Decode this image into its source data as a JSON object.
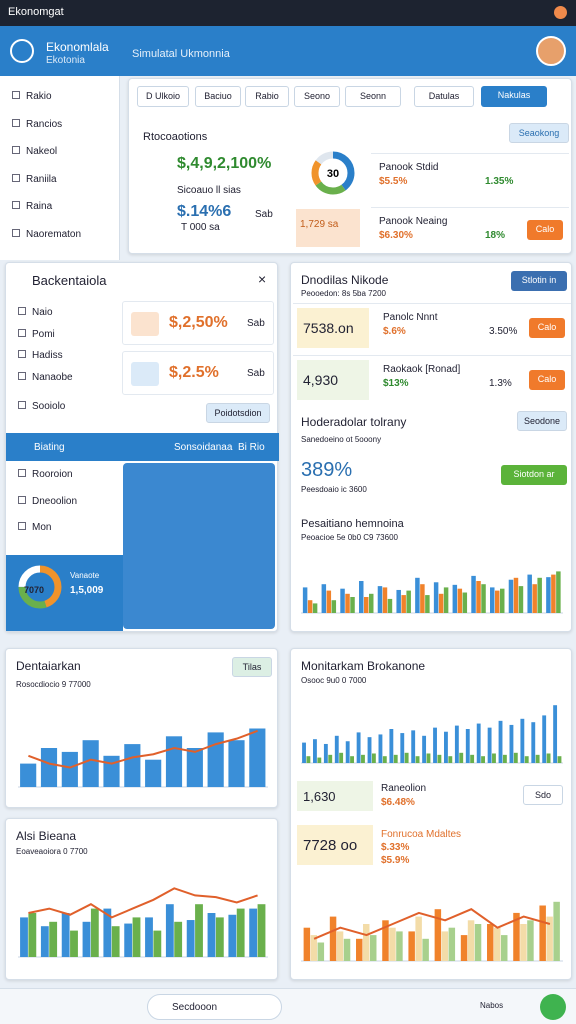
{
  "status_bar": {
    "title": "Ekonomgat"
  },
  "header": {
    "app_name": "Ekonomlala",
    "app_sub": "Ekotonia",
    "menu": "Simulatal Ukmonnia"
  },
  "sidebar": {
    "items": [
      "Rakio",
      "Rancios",
      "Nakeol",
      "Raniila",
      "Raina",
      "Naorematon"
    ]
  },
  "tabs": [
    "D Ulkoio",
    "Baciuo",
    "Rabio",
    "Seono",
    "Seonn",
    "Datulas",
    "Nakulas"
  ],
  "overview": {
    "title": "Rtocoaotions",
    "button": "Seaokong",
    "big_value": "$,4,9,2,100%",
    "big_caption": "Sicoauo ll sias",
    "value2": "$.14%6",
    "value2_caption": "T 000 sa",
    "value2_side": "Sab",
    "tag": "1,729 sa",
    "donut_label": "30",
    "donut_values": [
      40,
      25,
      20,
      15
    ],
    "donut_colors": [
      "#2a7fc9",
      "#6ab04c",
      "#f0932b",
      "#dfe6ee"
    ],
    "rows": [
      {
        "title": "Panook Stdid",
        "value": "$5.5%",
        "pct": "1.35%"
      },
      {
        "title": "Panook Neaing",
        "value": "$6.30%",
        "pct": "18%",
        "button": "Calo"
      }
    ]
  },
  "left_panel": {
    "title": "Backentaiola",
    "items": [
      "Naio",
      "Pomi",
      "Hadiss",
      "Nanaobe",
      "Sooiolo"
    ],
    "cards": [
      {
        "value": "$,2,50%",
        "side": "Sab"
      },
      {
        "value": "$,2.5%",
        "side": "Sab"
      }
    ],
    "button": "Poidotsdion",
    "active": {
      "label": "Biating",
      "middle": "Sonsoidanaa",
      "right": "Bi Rio"
    },
    "items2": [
      "Rooroion",
      "Dneoolion",
      "Mon"
    ],
    "donut_label": "7070",
    "donut_values": [
      45,
      30,
      25
    ],
    "donut_colors": [
      "#f0932b",
      "#6ab04c",
      "#ffffff"
    ],
    "donut_caption": "Vanaote",
    "donut_value": "1,5,009"
  },
  "right_panel": {
    "title": "Dnodilas Nikode",
    "subtitle": "Peooedon: 8s 5ba 7200",
    "button": "Stlotin in",
    "rows": [
      {
        "value": "7538.on",
        "title": "Panolc Nnnt",
        "sub": "$.6%",
        "pct": "3.50%",
        "button": "Calo"
      },
      {
        "value": "4,930",
        "title": "Raokaok [Ronad]",
        "sub": "$13%",
        "pct": "1.3%",
        "button": "Calo"
      }
    ],
    "section_title": "Hoderadolar tolrany",
    "section_sub": "Sanedoeino ot 5ooony",
    "section_button": "Seodone",
    "metric": "389%",
    "metric_caption": "Peesdoaio ic 3600",
    "metric_button": "Siotdon ar"
  },
  "bottom_right": {
    "title": "Monitarkam Brokanone",
    "subtitle": "Osooc 9u0 0 7000",
    "card1": {
      "value": "1,630",
      "title": "Raneolion",
      "sub": "$6.48%",
      "button": "Sdo"
    },
    "card2": {
      "value": "7728 oo",
      "title": "Fonrucoa Mdaltes",
      "sub": "$.33%",
      "sub2": "$5.9%"
    }
  },
  "bottom_nav": {
    "search": "Secdooon",
    "right": "Nabos"
  },
  "charts": [
    {
      "type": "bar",
      "title": "Pesaitiano hemnoina",
      "subtitle": "Peoacioe 5e 0b0 C9 73600",
      "ylim": [
        0,
        100
      ],
      "series": [
        {
          "kind": "bar",
          "color": "#3a8fd8",
          "values": [
            40,
            45,
            38,
            50,
            42,
            36,
            55,
            48,
            44,
            58,
            40,
            52,
            60,
            56
          ]
        },
        {
          "kind": "bar",
          "color": "#f0822b",
          "values": [
            20,
            35,
            30,
            25,
            40,
            28,
            45,
            30,
            38,
            50,
            35,
            55,
            45,
            60
          ]
        },
        {
          "kind": "bar",
          "color": "#6ab04c",
          "values": [
            15,
            20,
            25,
            30,
            22,
            35,
            28,
            40,
            32,
            45,
            38,
            42,
            55,
            65
          ]
        }
      ]
    },
    {
      "type": "bar",
      "title": "Dentaiarkan",
      "subtitle": "Rosocdiocio 9 77000",
      "button": "Tilas",
      "ylim": [
        0,
        100
      ],
      "series": [
        {
          "kind": "bar",
          "color": "#3a8fd8",
          "values": [
            30,
            50,
            45,
            60,
            40,
            55,
            35,
            65,
            50,
            70,
            60,
            75
          ]
        },
        {
          "kind": "line",
          "color": "#e0602b",
          "values": [
            40,
            30,
            25,
            35,
            30,
            38,
            42,
            50,
            45,
            55,
            62,
            72
          ]
        }
      ]
    },
    {
      "type": "bar",
      "title": "Alsi Bieana",
      "subtitle": "Eoaveaoiora 0 7700",
      "ylim": [
        0,
        100
      ],
      "series": [
        {
          "kind": "bar",
          "color": "#3a8fd8",
          "values": [
            45,
            35,
            50,
            40,
            55,
            38,
            45,
            60,
            42,
            50,
            48,
            55
          ]
        },
        {
          "kind": "bar",
          "color": "#6ab04c",
          "values": [
            50,
            40,
            30,
            55,
            35,
            45,
            30,
            40,
            60,
            45,
            55,
            60
          ]
        },
        {
          "kind": "line",
          "color": "#e0602b",
          "values": [
            50,
            55,
            48,
            60,
            45,
            55,
            65,
            78,
            70,
            68,
            62,
            70
          ]
        }
      ]
    },
    {
      "type": "bar",
      "title": "Monitarkam Brokanone",
      "ylim": [
        0,
        100
      ],
      "series": [
        {
          "kind": "bar",
          "color": "#3a8fd8",
          "values": [
            30,
            35,
            28,
            40,
            32,
            45,
            38,
            42,
            50,
            44,
            48,
            40,
            52,
            46,
            55,
            50,
            58,
            52,
            62,
            56,
            65,
            60,
            70,
            85
          ]
        },
        {
          "kind": "bar",
          "color": "#6ab04c",
          "values": [
            10,
            8,
            12,
            15,
            10,
            12,
            14,
            10,
            12,
            15,
            10,
            14,
            12,
            10,
            15,
            12,
            10,
            14,
            12,
            15,
            10,
            12,
            14,
            10
          ]
        }
      ]
    },
    {
      "type": "bar",
      "ylim": [
        0,
        100
      ],
      "series": [
        {
          "kind": "bar",
          "color": "#f0822b",
          "values": [
            45,
            60,
            30,
            55,
            40,
            70,
            35,
            50,
            65,
            75
          ]
        },
        {
          "kind": "bar",
          "color": "#f3dca8",
          "values": [
            35,
            40,
            50,
            45,
            60,
            40,
            55,
            45,
            50,
            60
          ]
        },
        {
          "kind": "bar",
          "color": "#a8d08d",
          "values": [
            25,
            30,
            35,
            40,
            30,
            45,
            50,
            35,
            55,
            80
          ]
        },
        {
          "kind": "line",
          "color": "#e0602b",
          "values": [
            30,
            45,
            35,
            50,
            65,
            55,
            70,
            45,
            60,
            50
          ]
        }
      ]
    }
  ]
}
